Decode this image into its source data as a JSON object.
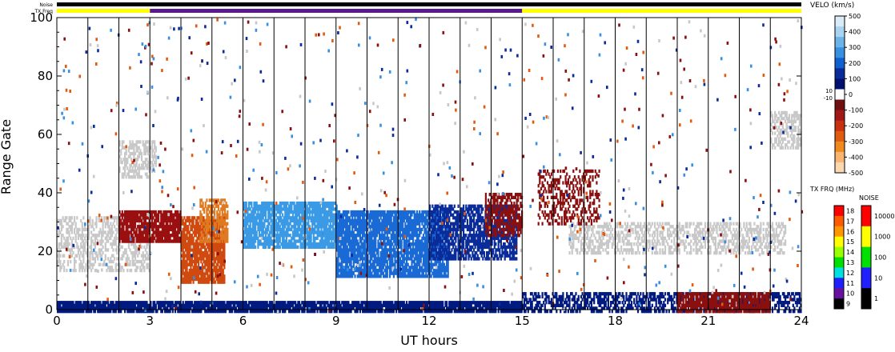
{
  "chart_data": {
    "type": "heatmap",
    "title": "",
    "xlabel": "UT hours",
    "ylabel": "Range Gate",
    "xlim": [
      0,
      24
    ],
    "ylim": [
      0,
      100
    ],
    "x_ticks": [
      "0",
      "3",
      "6",
      "9",
      "12",
      "15",
      "18",
      "21",
      "24"
    ],
    "y_ticks": [
      "0",
      "20",
      "40",
      "60",
      "80",
      "100"
    ],
    "x_tick_values": [
      0,
      3,
      6,
      9,
      12,
      15,
      18,
      21,
      24
    ],
    "y_tick_values": [
      0,
      20,
      40,
      60,
      80,
      100
    ],
    "scan_boundaries_hours": [
      1,
      2,
      3,
      4,
      5,
      6,
      7,
      8,
      9,
      10,
      11,
      12,
      13,
      14,
      15,
      16,
      17,
      18,
      19,
      20,
      21,
      22,
      23
    ],
    "status_bars": {
      "noise_label": "Noise",
      "txfreq_label": "TX Freq",
      "txfreq_segments": [
        {
          "start": 0,
          "end": 3,
          "color": "#ffff00"
        },
        {
          "start": 3,
          "end": 15,
          "color": "#5a1a8c"
        },
        {
          "start": 15,
          "end": 24,
          "color": "#ffff00"
        }
      ]
    },
    "velocity_colorbar": {
      "title": "VELO (km/s)",
      "tick_labels": [
        "500",
        "400",
        "300",
        "200",
        "100",
        "0",
        "-100",
        "-200",
        "-300",
        "-400",
        "-500"
      ],
      "tick_values": [
        500,
        400,
        300,
        200,
        100,
        0,
        -100,
        -200,
        -300,
        -400,
        -500
      ],
      "small_labels": [
        "10",
        "-10"
      ],
      "colors": [
        "#d8ecf8",
        "#a8d4f0",
        "#6cb4e8",
        "#3890e0",
        "#1060d0",
        "#0a2c9a",
        "#001070",
        "#ffffff",
        "#701010",
        "#a01818",
        "#c83010",
        "#e05a10",
        "#f08a20",
        "#f8b470",
        "#fcd8b0"
      ]
    },
    "txfreq_colorbar": {
      "title": "TX FRQ (MHz)",
      "tick_labels": [
        "18",
        "17",
        "16",
        "15",
        "14",
        "13",
        "12",
        "11",
        "10",
        "9"
      ],
      "colors": [
        "#ff0000",
        "#ff5a00",
        "#ff9600",
        "#ffff00",
        "#9aff00",
        "#00e000",
        "#00e0e0",
        "#2020ff",
        "#6a10a0",
        "#000000"
      ]
    },
    "noise_colorbar": {
      "title": "NOISE",
      "tick_labels": [
        "10000",
        "1000",
        "100",
        "10",
        "1"
      ],
      "colors": [
        "#ff0000",
        "#ffff00",
        "#00e000",
        "#2020ff",
        "#000000"
      ]
    },
    "regions": [
      {
        "label": "ground-scatter band",
        "x0": 0.0,
        "x1": 3.0,
        "y0": 14,
        "y1": 32,
        "color": "#c8c8c8",
        "density": 0.45
      },
      {
        "label": "ground-scatter band",
        "x0": 2.0,
        "x1": 3.2,
        "y0": 45,
        "y1": 58,
        "color": "#c8c8c8",
        "density": 0.55
      },
      {
        "label": "ground-scatter band",
        "x0": 16.5,
        "x1": 23.5,
        "y0": 20,
        "y1": 30,
        "color": "#c8c8c8",
        "density": 0.5
      },
      {
        "label": "ground-scatter band",
        "x0": 23.0,
        "x1": 24.0,
        "y0": 55,
        "y1": 68,
        "color": "#c8c8c8",
        "density": 0.5
      },
      {
        "label": "negative velocity",
        "x0": 2.0,
        "x1": 4.0,
        "y0": 24,
        "y1": 34,
        "color": "#9a1010",
        "density": 0.85
      },
      {
        "label": "negative velocity",
        "x0": 4.0,
        "x1": 5.4,
        "y0": 10,
        "y1": 32,
        "color": "#d04a10",
        "density": 0.85
      },
      {
        "label": "negative velocity",
        "x0": 4.6,
        "x1": 5.5,
        "y0": 24,
        "y1": 38,
        "color": "#e07a20",
        "density": 0.6
      },
      {
        "label": "positive velocity",
        "x0": 6.0,
        "x1": 9.0,
        "y0": 22,
        "y1": 37,
        "color": "#3a9ae6",
        "density": 0.85
      },
      {
        "label": "positive velocity",
        "x0": 9.0,
        "x1": 12.6,
        "y0": 12,
        "y1": 34,
        "color": "#1a6ad6",
        "density": 0.85
      },
      {
        "label": "positive velocity",
        "x0": 12.0,
        "x1": 14.8,
        "y0": 18,
        "y1": 36,
        "color": "#0a2c9a",
        "density": 0.7
      },
      {
        "label": "near-zero velocity",
        "x0": 0.0,
        "x1": 15.0,
        "y0": 0,
        "y1": 3,
        "color": "#001a80",
        "density": 0.9
      },
      {
        "label": "near-zero velocity",
        "x0": 15.0,
        "x1": 24.0,
        "y0": 0,
        "y1": 6,
        "color": "#001a80",
        "density": 0.55
      },
      {
        "label": "negative velocity",
        "x0": 20.0,
        "x1": 23.0,
        "y0": 0,
        "y1": 6,
        "color": "#8a1010",
        "density": 0.85
      },
      {
        "label": "negative velocity",
        "x0": 13.8,
        "x1": 15.0,
        "y0": 26,
        "y1": 40,
        "color": "#8a1010",
        "density": 0.6
      },
      {
        "label": "mixed scatter",
        "x0": 15.5,
        "x1": 17.5,
        "y0": 30,
        "y1": 48,
        "color": "#8a1010",
        "density": 0.35
      }
    ]
  }
}
